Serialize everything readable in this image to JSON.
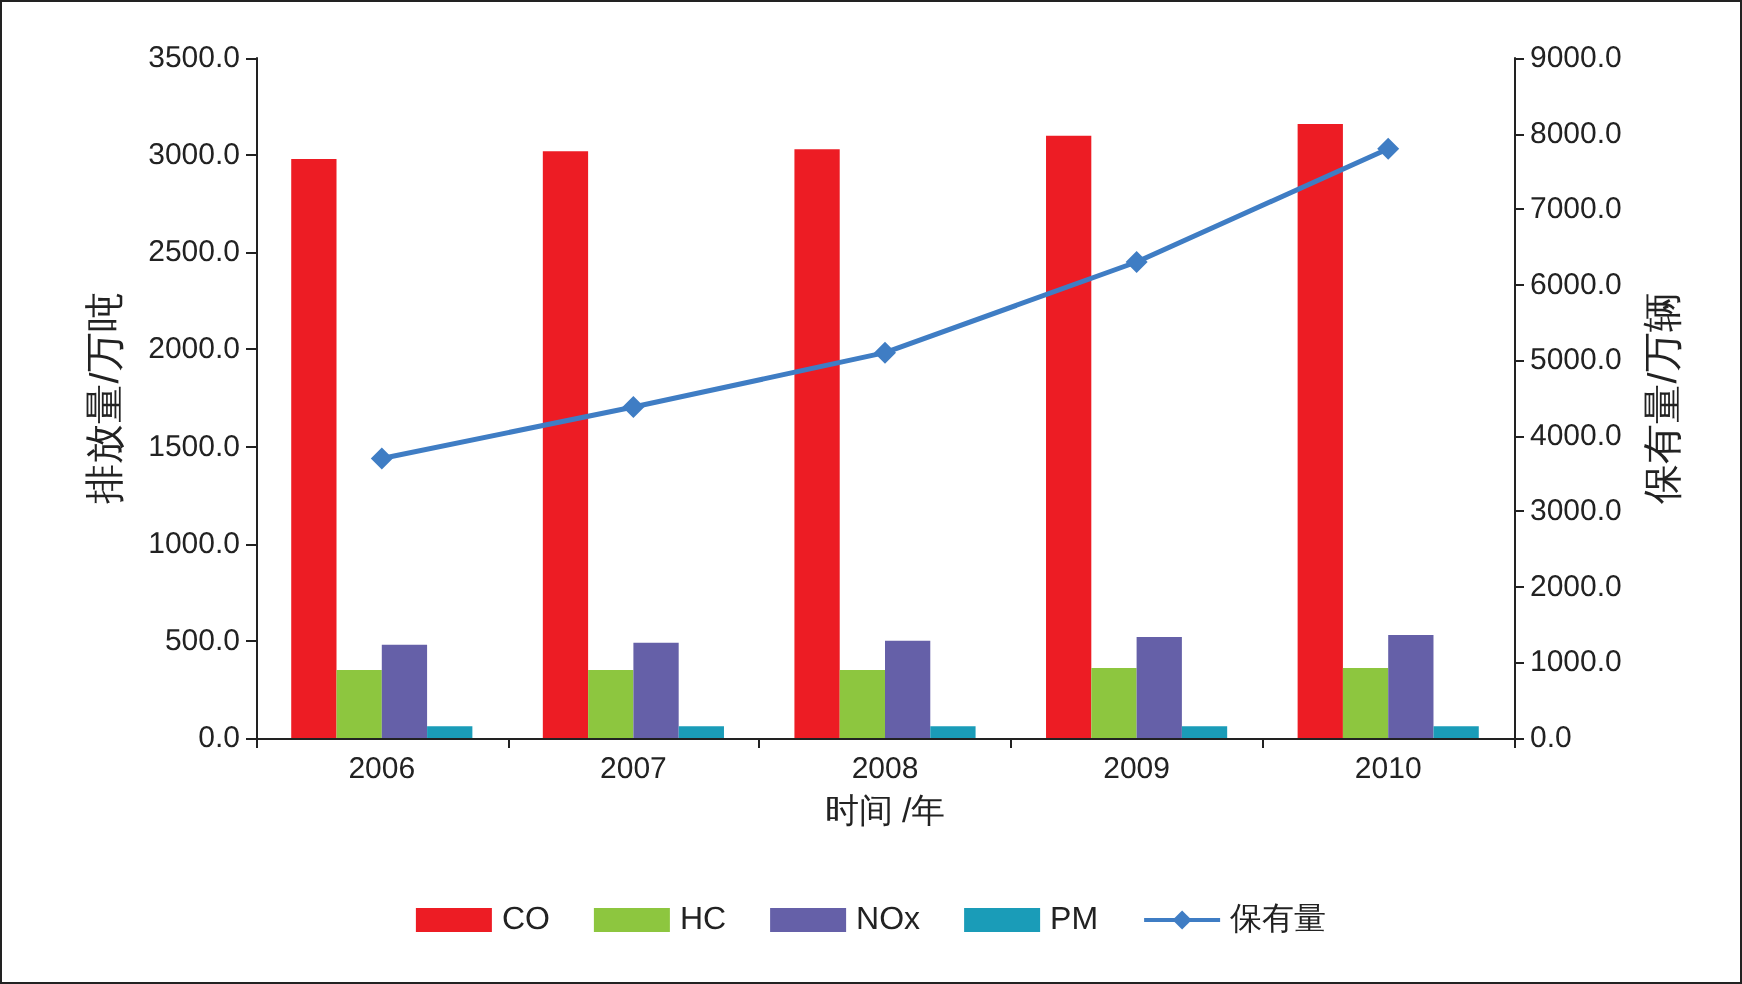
{
  "chart_data": {
    "type": "bar",
    "categories": [
      "2006",
      "2007",
      "2008",
      "2009",
      "2010"
    ],
    "xlabel": "时间 /年",
    "ylabel": "排放量/万吨",
    "y2label": "保有量/万辆",
    "series": [
      {
        "name": "CO",
        "color": "#ed1c24",
        "values": [
          2980,
          3020,
          3030,
          3100,
          3160
        ]
      },
      {
        "name": "HC",
        "color": "#8dc63f",
        "values": [
          350,
          350,
          350,
          360,
          360
        ]
      },
      {
        "name": "NOx",
        "color": "#6560a8",
        "values": [
          480,
          490,
          500,
          520,
          530
        ]
      },
      {
        "name": "PM",
        "color": "#1a9cb8",
        "values": [
          60,
          60,
          60,
          60,
          60
        ]
      },
      {
        "name": "保有量",
        "type": "line",
        "axis": "y2",
        "color": "#3f7dc4",
        "marker": "diamond",
        "values": [
          3700,
          4380,
          5100,
          6300,
          7800
        ]
      }
    ],
    "ylim": [
      0,
      3500
    ],
    "yticks": [
      {
        "value": 0,
        "label": "0.0"
      },
      {
        "value": 500,
        "label": "500.0"
      },
      {
        "value": 1000,
        "label": "1000.0"
      },
      {
        "value": 1500,
        "label": "1500.0"
      },
      {
        "value": 2000,
        "label": "2000.0"
      },
      {
        "value": 2500,
        "label": "2500.0"
      },
      {
        "value": 3000,
        "label": "3000.0"
      },
      {
        "value": 3500,
        "label": "3500.0"
      }
    ],
    "y2lim": [
      0,
      9000
    ],
    "y2ticks": [
      {
        "value": 0,
        "label": "0.0"
      },
      {
        "value": 1000,
        "label": "1000.0"
      },
      {
        "value": 2000,
        "label": "2000.0"
      },
      {
        "value": 3000,
        "label": "3000.0"
      },
      {
        "value": 4000,
        "label": "4000.0"
      },
      {
        "value": 5000,
        "label": "5000.0"
      },
      {
        "value": 6000,
        "label": "6000.0"
      },
      {
        "value": 7000,
        "label": "7000.0"
      },
      {
        "value": 8000,
        "label": "8000.0"
      },
      {
        "value": 9000,
        "label": "9000.0"
      }
    ],
    "grid": false,
    "legend": "bottom"
  }
}
